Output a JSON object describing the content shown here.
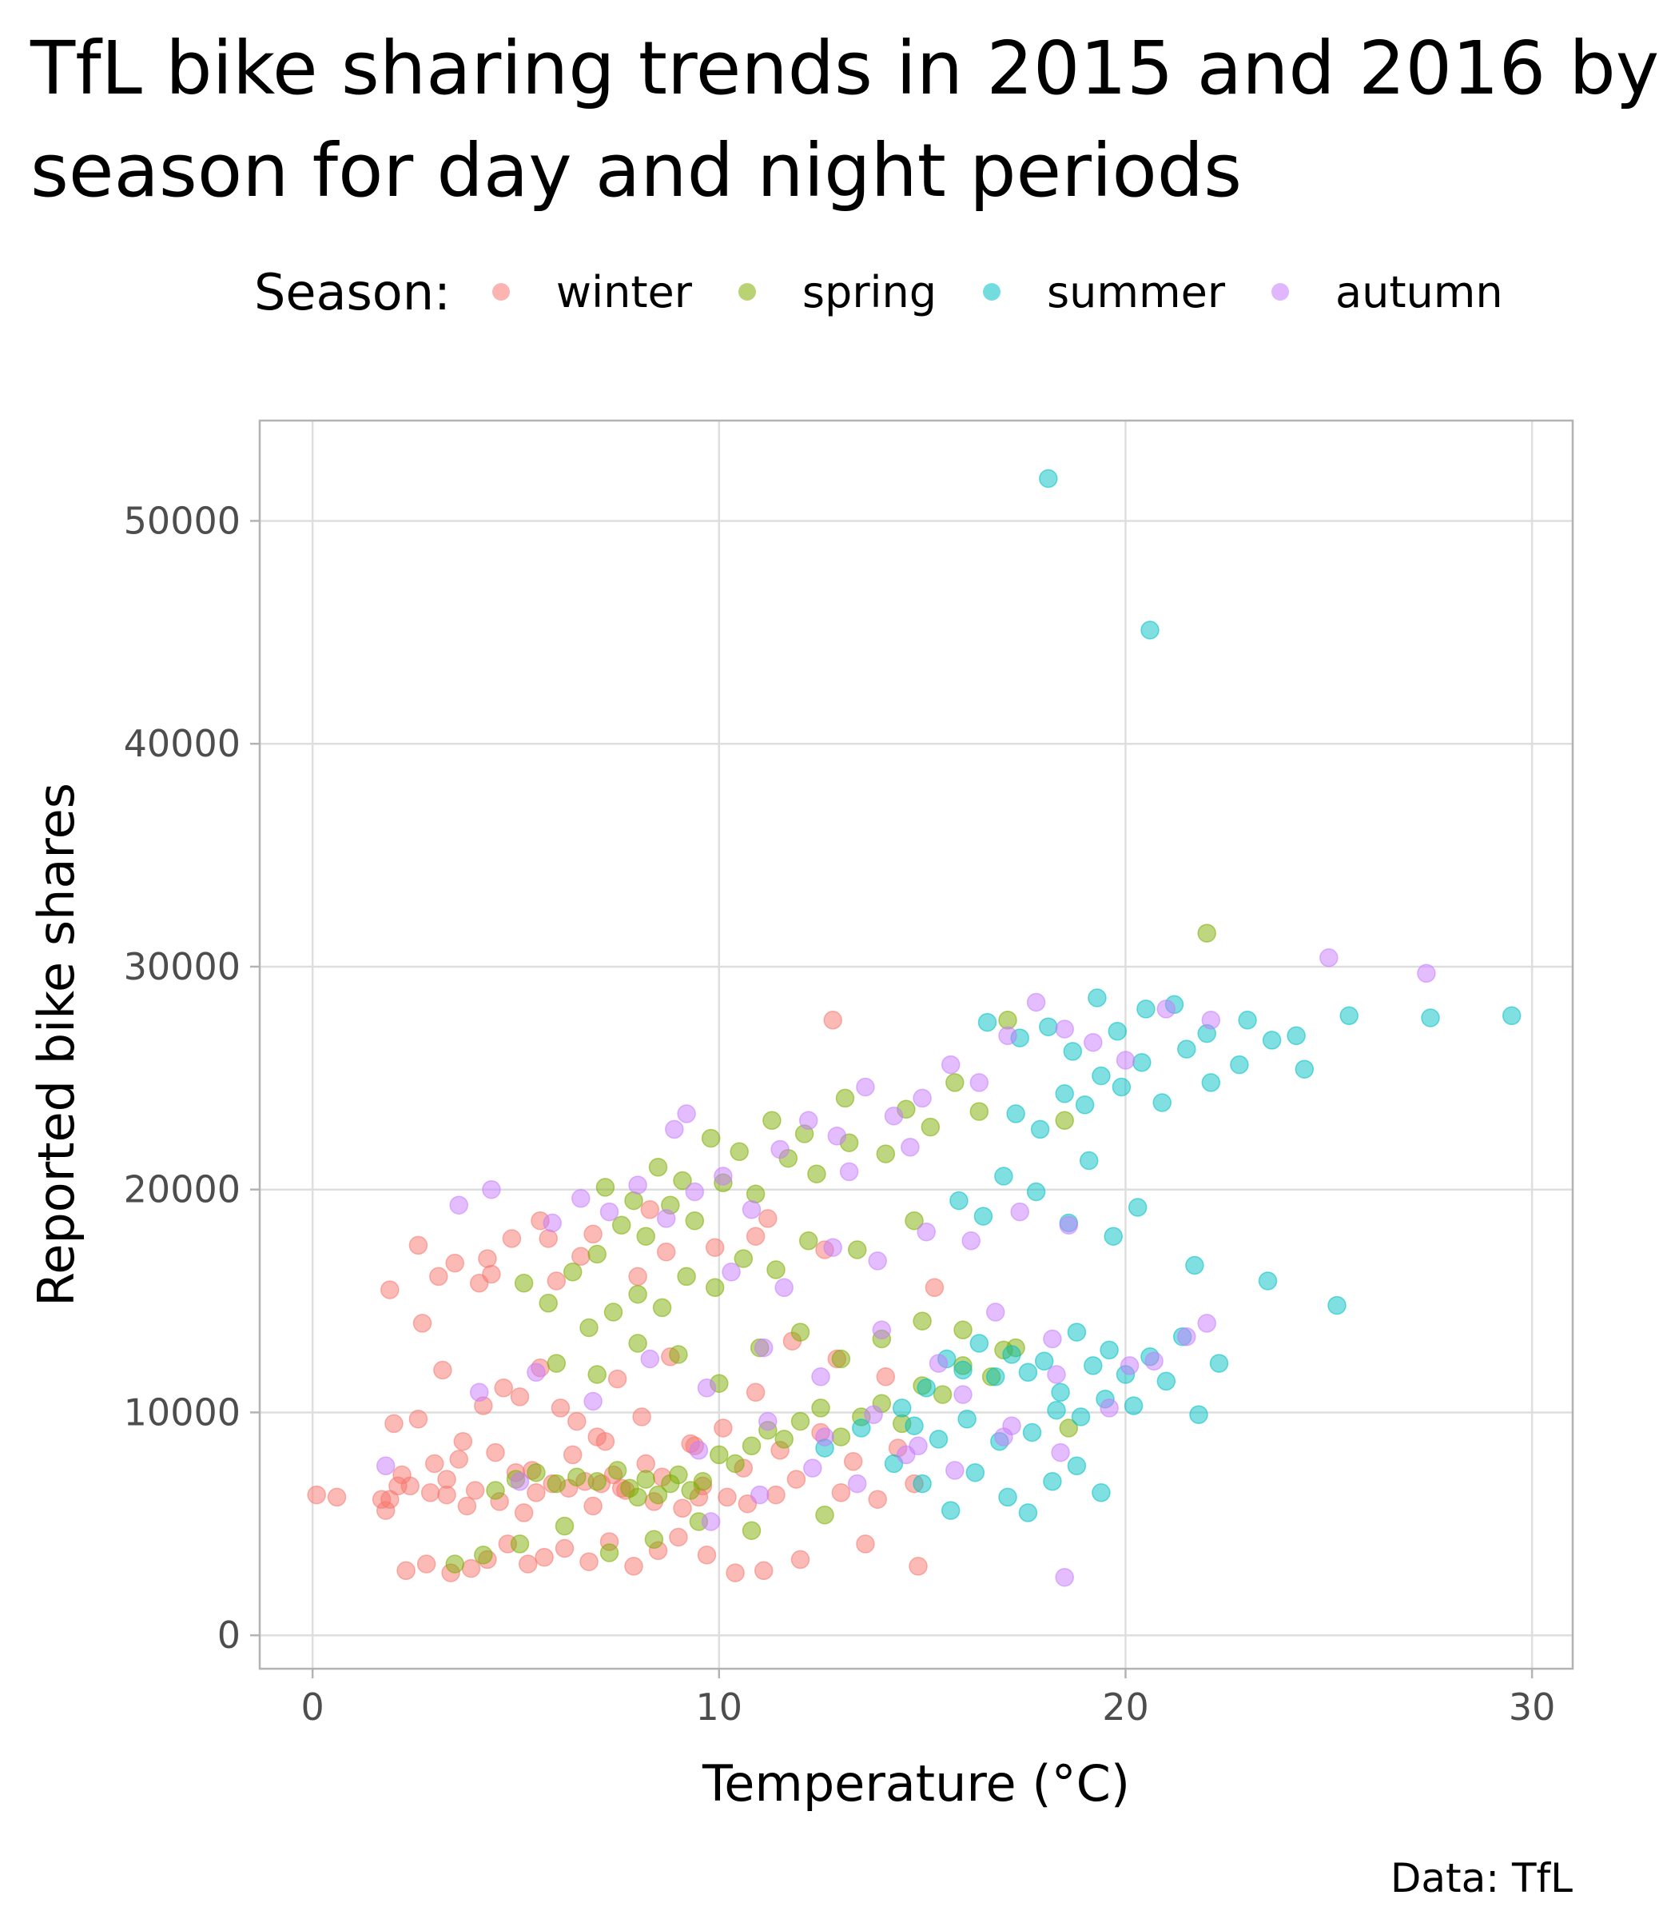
{
  "title_line1": "TfL bike sharing trends in 2015 and 2016 by",
  "title_line2": "season for day and night periods",
  "legend_title": "Season:",
  "caption": "Data: TfL",
  "colors": {
    "winter": "#F8766D",
    "spring": "#7CAE00",
    "summer": "#00BFC4",
    "autumn": "#C77CFF",
    "grid": "#DEDEDE",
    "panel_border": "#B3B3B3",
    "tick_text": "#4D4D4D"
  },
  "chart_data": {
    "type": "scatter",
    "title": "TfL bike sharing trends in 2015 and 2016 by season for day and night periods",
    "xlabel": "Temperature (°C)",
    "ylabel": "Reported bike shares",
    "xlim": [
      -1.3,
      31
    ],
    "ylim": [
      -1500,
      54500
    ],
    "xticks": [
      0,
      10,
      20,
      30
    ],
    "yticks": [
      0,
      10000,
      20000,
      30000,
      40000,
      50000
    ],
    "grid": true,
    "legend_position": "top",
    "series": [
      {
        "name": "winter",
        "color": "#F8766D",
        "x": [
          0.1,
          0.6,
          1.7,
          1.9,
          2.1,
          2.6,
          2.7,
          2.9,
          3.1,
          3.3,
          3.5,
          3.8,
          4.1,
          4.4,
          4.6,
          4.9,
          5.2,
          5.5,
          5.8,
          6.0,
          6.3,
          6.6,
          6.9,
          7.1,
          7.4,
          7.7,
          8.0,
          8.4,
          8.7,
          9.1,
          9.6,
          10.2,
          10.9,
          11.4,
          12.8,
          1.8,
          2.3,
          2.8,
          3.4,
          3.9,
          4.3,
          4.8,
          5.3,
          5.7,
          6.2,
          6.8,
          7.3,
          7.9,
          8.5,
          9.0,
          9.7,
          10.4,
          11.1,
          12.0,
          13.6,
          14.9,
          2.0,
          2.6,
          3.2,
          3.7,
          4.2,
          4.7,
          5.1,
          5.6,
          6.1,
          6.5,
          7.0,
          7.5,
          8.1,
          8.8,
          9.4,
          10.1,
          10.9,
          11.8,
          12.9,
          14.1,
          15.3,
          2.2,
          3.0,
          3.6,
          4.5,
          5.4,
          6.4,
          7.2,
          8.2,
          9.3,
          10.6,
          11.5,
          12.5,
          13.3,
          14.4,
          1.9,
          2.4,
          3.3,
          4.0,
          5.0,
          5.9,
          6.7,
          7.6,
          8.6,
          9.5,
          10.7,
          11.9,
          13.0,
          13.9,
          14.8,
          4.3,
          5.6,
          6.9,
          8.3,
          9.9,
          11.2,
          12.6
        ],
        "y": [
          6300,
          6200,
          6100,
          15500,
          6700,
          17500,
          14000,
          6400,
          16100,
          6300,
          16700,
          5800,
          15800,
          16200,
          6000,
          17800,
          5500,
          6400,
          17800,
          15900,
          6600,
          17000,
          5800,
          6800,
          7200,
          6500,
          16100,
          6000,
          17200,
          5700,
          6700,
          6200,
          17900,
          6300,
          27600,
          5600,
          2900,
          3200,
          2800,
          3000,
          3400,
          4100,
          3200,
          3500,
          3900,
          3300,
          4200,
          3100,
          3800,
          4400,
          3600,
          2800,
          2900,
          3400,
          4100,
          3100,
          9500,
          9700,
          11900,
          8700,
          10300,
          11100,
          10700,
          12000,
          10200,
          9600,
          8900,
          11500,
          9800,
          12500,
          8500,
          9300,
          10900,
          13200,
          12400,
          11600,
          15600,
          7200,
          7700,
          7900,
          8200,
          7400,
          8100,
          8700,
          7700,
          8600,
          7500,
          8300,
          9100,
          7800,
          8400,
          6100,
          6700,
          7000,
          6500,
          7300,
          6800,
          6900,
          6600,
          7100,
          6200,
          5900,
          7000,
          6400,
          6100,
          6800,
          16900,
          18600,
          18000,
          19100,
          17400,
          18700,
          17300
        ]
      },
      {
        "name": "spring",
        "color": "#7CAE00",
        "x": [
          4.5,
          5.0,
          5.5,
          6.0,
          6.5,
          7.0,
          7.5,
          7.8,
          8.0,
          8.2,
          8.5,
          8.8,
          9.0,
          9.3,
          9.6,
          10.0,
          10.4,
          10.8,
          11.2,
          11.6,
          12.0,
          12.5,
          13.0,
          13.5,
          14.0,
          14.5,
          15.0,
          15.5,
          16.0,
          16.7,
          17.3,
          18.6,
          22.0,
          5.2,
          5.8,
          6.4,
          7.0,
          7.6,
          8.2,
          8.8,
          9.4,
          10.1,
          10.9,
          11.7,
          12.4,
          13.2,
          14.1,
          15.2,
          16.4,
          6.8,
          7.4,
          8.0,
          8.6,
          9.2,
          9.9,
          10.6,
          11.4,
          12.2,
          13.4,
          14.8,
          7.2,
          7.9,
          8.5,
          9.1,
          9.8,
          10.5,
          11.3,
          12.1,
          13.1,
          14.6,
          15.8,
          17.1,
          3.5,
          4.2,
          5.1,
          6.2,
          7.3,
          8.4,
          9.5,
          10.8,
          12.6,
          6.0,
          7.0,
          8.0,
          9.0,
          10.0,
          11.0,
          12.0,
          13.0,
          14.0,
          15.0,
          16.0,
          17.0,
          18.5
        ],
        "y": [
          6500,
          7000,
          7300,
          6800,
          7100,
          6900,
          7400,
          6600,
          6200,
          7000,
          6300,
          6800,
          7200,
          6500,
          6900,
          8100,
          7700,
          8500,
          9200,
          8800,
          9600,
          10200,
          8900,
          9800,
          10400,
          9500,
          11200,
          10800,
          12100,
          11600,
          12900,
          9300,
          31500,
          15800,
          14900,
          16300,
          17100,
          18400,
          17900,
          19300,
          18600,
          20300,
          19800,
          21400,
          20700,
          22100,
          21600,
          22800,
          23500,
          13800,
          14500,
          15300,
          14700,
          16100,
          15600,
          16900,
          16400,
          17700,
          17300,
          18600,
          20100,
          19500,
          21000,
          20400,
          22300,
          21700,
          23100,
          22500,
          24100,
          23600,
          24800,
          27600,
          3200,
          3600,
          4100,
          4900,
          3700,
          4300,
          5100,
          4700,
          5400,
          12200,
          11700,
          13100,
          12600,
          11300,
          12900,
          13600,
          12400,
          13300,
          14100,
          13700,
          12800,
          23100
        ]
      },
      {
        "name": "summer",
        "color": "#00BFC4",
        "x": [
          12.6,
          13.5,
          14.5,
          15.1,
          15.6,
          16.0,
          16.4,
          16.8,
          17.2,
          17.6,
          18.0,
          18.4,
          18.8,
          19.2,
          19.6,
          20.0,
          20.6,
          21.4,
          22.3,
          23.5,
          25.2,
          14.8,
          15.4,
          16.1,
          16.9,
          17.7,
          18.3,
          18.9,
          19.5,
          20.2,
          21.0,
          21.8,
          17.3,
          17.9,
          18.5,
          19.0,
          19.4,
          19.9,
          20.4,
          20.9,
          21.5,
          22.1,
          22.8,
          23.6,
          24.4,
          25.5,
          27.5,
          29.5,
          16.6,
          17.4,
          18.1,
          18.7,
          19.3,
          19.8,
          20.5,
          21.2,
          22.0,
          23.0,
          24.2,
          15.9,
          16.5,
          17.0,
          17.8,
          18.6,
          19.1,
          19.7,
          20.3,
          21.7,
          18.1,
          20.6,
          14.3,
          15.0,
          15.7,
          16.3,
          17.1,
          17.6,
          18.2,
          18.8,
          19.4
        ],
        "y": [
          8400,
          9300,
          10200,
          11100,
          12400,
          11900,
          13100,
          11600,
          12600,
          11800,
          12300,
          10900,
          13600,
          12100,
          12800,
          11700,
          12500,
          13400,
          12200,
          15900,
          14800,
          9400,
          8800,
          9700,
          8700,
          9100,
          10100,
          9800,
          10600,
          10300,
          11400,
          9900,
          23400,
          22700,
          24300,
          23800,
          25100,
          24600,
          25700,
          23900,
          26300,
          24800,
          25600,
          26700,
          25400,
          27800,
          27700,
          27800,
          27500,
          26800,
          27300,
          26200,
          28600,
          27100,
          28100,
          28300,
          27000,
          27600,
          26900,
          19500,
          18800,
          20600,
          19900,
          18500,
          21300,
          17900,
          19200,
          16600,
          51900,
          45100,
          7700,
          6800,
          5600,
          7300,
          6200,
          5500,
          6900,
          7600,
          6400
        ]
      },
      {
        "name": "autumn",
        "color": "#C77CFF",
        "x": [
          1.8,
          3.6,
          4.4,
          5.1,
          5.9,
          6.6,
          7.3,
          8.0,
          8.7,
          9.4,
          10.1,
          10.8,
          11.5,
          12.2,
          12.9,
          13.6,
          14.3,
          15.0,
          15.7,
          16.4,
          17.1,
          17.8,
          18.5,
          19.2,
          20.0,
          21.0,
          22.1,
          25.0,
          27.4,
          9.5,
          11.2,
          12.6,
          13.8,
          14.9,
          16.0,
          17.2,
          18.3,
          19.6,
          20.7,
          22.0,
          10.3,
          11.6,
          12.8,
          13.9,
          15.1,
          16.2,
          17.4,
          18.6,
          20.1,
          21.5,
          9.8,
          11.0,
          12.3,
          13.4,
          14.6,
          15.8,
          17.0,
          18.4,
          4.1,
          5.5,
          6.9,
          8.3,
          9.7,
          11.1,
          12.5,
          14.0,
          15.4,
          16.8,
          18.2,
          13.2,
          14.7,
          8.9,
          9.2,
          18.5
        ],
        "y": [
          7600,
          19300,
          20000,
          6900,
          18500,
          19600,
          19000,
          20200,
          18700,
          19900,
          20600,
          19100,
          21800,
          23100,
          22400,
          24600,
          23300,
          24100,
          25600,
          24800,
          26900,
          28400,
          27200,
          26600,
          25800,
          28100,
          27600,
          30400,
          29700,
          8300,
          9600,
          8900,
          9900,
          8500,
          10800,
          9400,
          11700,
          10200,
          12300,
          14000,
          16300,
          15600,
          17400,
          16800,
          18100,
          17700,
          19000,
          18400,
          12100,
          13400,
          5100,
          6300,
          7500,
          6800,
          8100,
          7400,
          8900,
          8200,
          10900,
          11800,
          10500,
          12400,
          11100,
          12900,
          11600,
          13700,
          12200,
          14500,
          13300,
          20800,
          21900,
          22700,
          23400,
          2600
        ]
      }
    ]
  }
}
